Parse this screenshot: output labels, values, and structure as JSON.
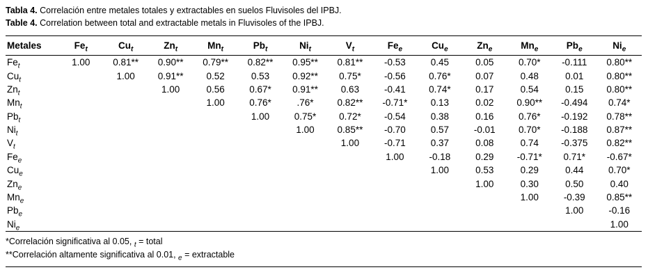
{
  "caption": {
    "es_label": "Tabla 4.",
    "es_text": "Correlación entre metales totales y extractables en suelos Fluvisoles del IPBJ.",
    "en_label": "Table 4.",
    "en_text": "Correlation between total and extractable metals in Fluvisoles of the IPBJ."
  },
  "table": {
    "columns": [
      {
        "text": "Metales",
        "sub": ""
      },
      {
        "text": "Fe",
        "sub": "t"
      },
      {
        "text": "Cu",
        "sub": "t"
      },
      {
        "text": "Zn",
        "sub": "t"
      },
      {
        "text": "Mn",
        "sub": "t"
      },
      {
        "text": "Pb",
        "sub": "t"
      },
      {
        "text": "Ni",
        "sub": "t"
      },
      {
        "text": "V",
        "sub": "t"
      },
      {
        "text": "Fe",
        "sub": "e"
      },
      {
        "text": "Cu",
        "sub": "e"
      },
      {
        "text": "Zn",
        "sub": "e"
      },
      {
        "text": "Mn",
        "sub": "e"
      },
      {
        "text": "Pb",
        "sub": "e"
      },
      {
        "text": "Ni",
        "sub": "e"
      }
    ],
    "rows": [
      {
        "label": "Fe",
        "sub": "t",
        "values": [
          "1.00",
          "0.81**",
          "0.90**",
          "0.79**",
          "0.82**",
          "0.95**",
          "0.81**",
          "-0.53",
          "0.45",
          "0.05",
          "0.70*",
          "-0.111",
          "0.80**"
        ]
      },
      {
        "label": "Cu",
        "sub": "t",
        "values": [
          "",
          "1.00",
          "0.91**",
          "0.52",
          "0.53",
          "0.92**",
          "0.75*",
          "-0.56",
          "0.76*",
          "0.07",
          "0.48",
          "0.01",
          "0.80**"
        ]
      },
      {
        "label": "Zn",
        "sub": "t",
        "values": [
          "",
          "",
          "1.00",
          "0.56",
          "0.67*",
          "0.91**",
          "0.63",
          "-0.41",
          "0.74*",
          "0.17",
          "0.54",
          "0.15",
          "0.80**"
        ]
      },
      {
        "label": "Mn",
        "sub": "t",
        "values": [
          "",
          "",
          "",
          "1.00",
          "0.76*",
          ".76*",
          "0.82**",
          "-0.71*",
          "0.13",
          "0.02",
          "0.90**",
          "-0.494",
          "0.74*"
        ]
      },
      {
        "label": "Pb",
        "sub": "t",
        "values": [
          "",
          "",
          "",
          "",
          "1.00",
          "0.75*",
          "0.72*",
          "-0.54",
          "0.38",
          "0.16",
          "0.76*",
          "-0.192",
          "0.78**"
        ]
      },
      {
        "label": "Ni",
        "sub": "t",
        "values": [
          "",
          "",
          "",
          "",
          "",
          "1.00",
          "0.85**",
          "-0.70",
          "0.57",
          "-0.01",
          "0.70*",
          "-0.188",
          "0.87**"
        ]
      },
      {
        "label": "V",
        "sub": "t",
        "values": [
          "",
          "",
          "",
          "",
          "",
          "",
          "1.00",
          "-0.71",
          "0.37",
          "0.08",
          "0.74",
          "-0.375",
          "0.82**"
        ]
      },
      {
        "label": "Fe",
        "sub": "e",
        "values": [
          "",
          "",
          "",
          "",
          "",
          "",
          "",
          "1.00",
          "-0.18",
          "0.29",
          "-0.71*",
          "0.71*",
          "-0.67*"
        ]
      },
      {
        "label": "Cu",
        "sub": "e",
        "values": [
          "",
          "",
          "",
          "",
          "",
          "",
          "",
          "",
          "1.00",
          "0.53",
          "0.29",
          "0.44",
          "0.70*"
        ]
      },
      {
        "label": "Zn",
        "sub": "e",
        "values": [
          "",
          "",
          "",
          "",
          "",
          "",
          "",
          "",
          "",
          "1.00",
          "0.30",
          "0.50",
          "0.40"
        ]
      },
      {
        "label": "Mn",
        "sub": "e",
        "values": [
          "",
          "",
          "",
          "",
          "",
          "",
          "",
          "",
          "",
          "",
          "1.00",
          "-0.39",
          "0.85**"
        ]
      },
      {
        "label": "Pb",
        "sub": "e",
        "values": [
          "",
          "",
          "",
          "",
          "",
          "",
          "",
          "",
          "",
          "",
          "",
          "1.00",
          "-0.16"
        ]
      },
      {
        "label": "Ni",
        "sub": "e",
        "values": [
          "",
          "",
          "",
          "",
          "",
          "",
          "",
          "",
          "",
          "",
          "",
          "",
          "1.00"
        ]
      }
    ]
  },
  "footnotes": [
    {
      "text": "*Correlación significativa al 0.05, ",
      "sub": "t",
      "rest": " = total"
    },
    {
      "text": "**Correlación altamente significativa al 0.01, ",
      "sub": "e",
      "rest": " = extractable"
    }
  ]
}
